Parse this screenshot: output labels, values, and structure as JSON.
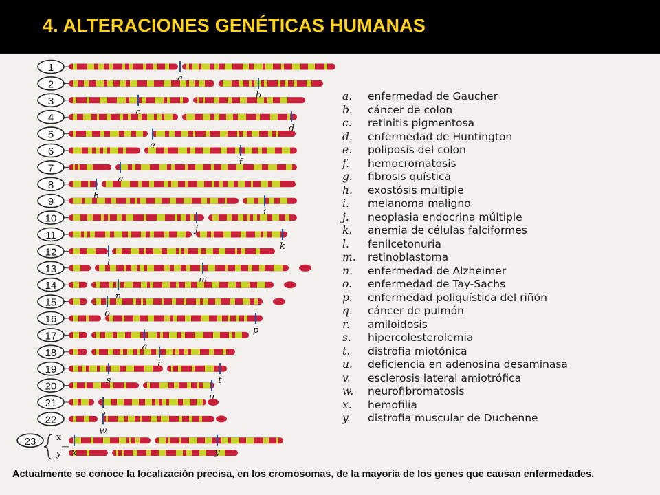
{
  "header": {
    "title": "4.  ALTERACIONES  GENÉTICAS HUMANAS"
  },
  "chromosomes": [
    {
      "label": "1",
      "marker": "a"
    },
    {
      "label": "2",
      "marker": "b"
    },
    {
      "label": "3",
      "marker": "c"
    },
    {
      "label": "4",
      "marker": "d"
    },
    {
      "label": "5",
      "marker": "e"
    },
    {
      "label": "6",
      "marker": "f"
    },
    {
      "label": "7",
      "marker": "g"
    },
    {
      "label": "8",
      "marker": "h"
    },
    {
      "label": "9",
      "marker": "i"
    },
    {
      "label": "10",
      "marker": "j"
    },
    {
      "label": "11",
      "marker": "k"
    },
    {
      "label": "12",
      "marker": "l"
    },
    {
      "label": "13",
      "marker": "m"
    },
    {
      "label": "14",
      "marker": "n"
    },
    {
      "label": "15",
      "marker": "o"
    },
    {
      "label": "16",
      "marker": "p"
    },
    {
      "label": "17",
      "marker": "q"
    },
    {
      "label": "18",
      "marker": "r"
    },
    {
      "label": "19",
      "marker": "s t"
    },
    {
      "label": "20",
      "marker": "u"
    },
    {
      "label": "21",
      "marker": "v"
    },
    {
      "label": "22",
      "marker": "w"
    },
    {
      "label": "23",
      "marker": "x y"
    }
  ],
  "sex_chromosomes": [
    "x",
    "y"
  ],
  "legend": [
    {
      "letter": "a.",
      "name": "enfermedad de Gaucher"
    },
    {
      "letter": "b.",
      "name": "cáncer de colon"
    },
    {
      "letter": "c.",
      "name": "retinitis pigmentosa"
    },
    {
      "letter": "d.",
      "name": "enfermedad de Huntington"
    },
    {
      "letter": "e.",
      "name": "poliposis del colon"
    },
    {
      "letter": "f.",
      "name": "hemocromatosis"
    },
    {
      "letter": "g.",
      "name": "fibrosis quística"
    },
    {
      "letter": "h.",
      "name": "exostósis múltiple"
    },
    {
      "letter": "i.",
      "name": "melanoma maligno"
    },
    {
      "letter": "j.",
      "name": "neoplasia endocrina múltiple"
    },
    {
      "letter": "k.",
      "name": "anemia de células falciformes"
    },
    {
      "letter": "l.",
      "name": "fenilcetonuria"
    },
    {
      "letter": "m.",
      "name": "retinoblastoma"
    },
    {
      "letter": "n.",
      "name": "enfermedad de Alzheimer"
    },
    {
      "letter": "o.",
      "name": "enfermedad de Tay-Sachs"
    },
    {
      "letter": "p.",
      "name": "enfermedad poliquística del riñón"
    },
    {
      "letter": "q.",
      "name": "cáncer de pulmón"
    },
    {
      "letter": "r.",
      "name": "amiloidosis"
    },
    {
      "letter": "s.",
      "name": "hipercolesterolemia"
    },
    {
      "letter": "t.",
      "name": "distrofia miotónica"
    },
    {
      "letter": "u.",
      "name": "deficiencia en adenosina desaminasa"
    },
    {
      "letter": "v.",
      "name": "esclerosis lateral amiotrófica"
    },
    {
      "letter": "w.",
      "name": "neurofibromatosis"
    },
    {
      "letter": "x.",
      "name": "hemofilia"
    },
    {
      "letter": "y.",
      "name": "distrofia muscular de Duchenne"
    }
  ],
  "caption": "Actualmente se conoce la localización precisa, en los cromosomas, de la mayoría de los genes que causan enfermedades.",
  "colors": {
    "band_red": "#c8203a",
    "band_yellow": "#c9d42a",
    "marker_blue": "#1f4fa0",
    "title_yellow": "#ffd21a"
  }
}
